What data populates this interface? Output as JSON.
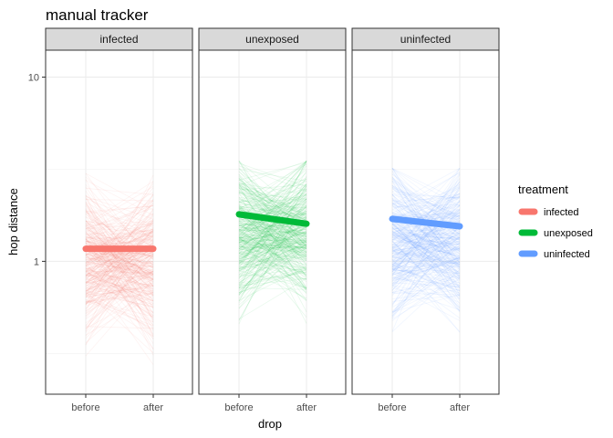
{
  "chart_data": {
    "type": "line",
    "title": "manual tracker",
    "xlabel": "drop",
    "ylabel": "hop distance",
    "x_categories": [
      "before",
      "after"
    ],
    "y_scale": "log10",
    "ylim": [
      0.19,
      14
    ],
    "y_ticks": [
      1,
      10
    ],
    "y_tick_labels": [
      "1",
      "10"
    ],
    "grid": true,
    "legend": {
      "title": "treatment",
      "position": "right"
    },
    "facets": [
      {
        "label": "infected",
        "series": "infected",
        "color": "#F8766D",
        "mean_before": 1.17,
        "mean_after": 1.17,
        "spread_min": 0.2,
        "spread_max": 3.0
      },
      {
        "label": "unexposed",
        "series": "unexposed",
        "color": "#00BA38",
        "mean_before": 1.8,
        "mean_after": 1.6,
        "spread_min": 0.25,
        "spread_max": 3.5
      },
      {
        "label": "uninfected",
        "series": "uninfected",
        "color": "#619CFF",
        "mean_before": 1.7,
        "mean_after": 1.55,
        "spread_min": 0.22,
        "spread_max": 3.2
      }
    ],
    "series": [
      {
        "name": "infected",
        "color": "#F8766D"
      },
      {
        "name": "unexposed",
        "color": "#00BA38"
      },
      {
        "name": "uninfected",
        "color": "#619CFF"
      }
    ]
  }
}
